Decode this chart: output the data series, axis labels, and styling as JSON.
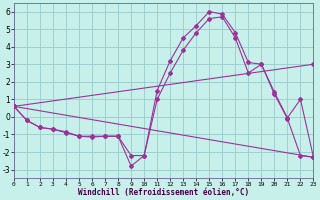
{
  "bg_color": "#c8f0ea",
  "grid_color": "#99cccc",
  "line_color": "#993399",
  "xlim": [
    0,
    23
  ],
  "ylim": [
    -3.5,
    6.5
  ],
  "xticks": [
    0,
    1,
    2,
    3,
    4,
    5,
    6,
    7,
    8,
    9,
    10,
    11,
    12,
    13,
    14,
    15,
    16,
    17,
    18,
    19,
    20,
    21,
    22,
    23
  ],
  "yticks": [
    -3,
    -2,
    -1,
    0,
    1,
    2,
    3,
    4,
    5,
    6
  ],
  "xlabel": "Windchill (Refroidissement éolien,°C)",
  "line1_x": [
    0,
    1,
    2,
    3,
    4,
    5,
    6,
    7,
    8,
    9,
    10,
    11,
    12,
    13,
    14,
    15,
    16,
    17,
    18,
    19,
    20,
    21,
    22,
    23
  ],
  "line1_y": [
    0.6,
    -0.2,
    -0.6,
    -0.7,
    -0.9,
    -1.1,
    -1.1,
    -1.1,
    -1.1,
    -2.8,
    -2.2,
    1.5,
    3.2,
    4.5,
    5.2,
    6.0,
    5.85,
    4.8,
    3.1,
    3.0,
    1.4,
    -0.05,
    1.0,
    -2.3
  ],
  "line2_x": [
    0,
    1,
    2,
    3,
    4,
    5,
    6,
    7,
    8,
    9,
    10,
    11,
    12,
    13,
    14,
    15,
    16,
    17,
    18,
    19,
    20,
    21,
    22,
    23
  ],
  "line2_y": [
    0.6,
    -0.2,
    -0.6,
    -0.7,
    -0.85,
    -1.1,
    -1.15,
    -1.1,
    -1.1,
    -2.2,
    -2.2,
    1.0,
    2.5,
    3.8,
    4.8,
    5.6,
    5.7,
    4.5,
    2.5,
    3.0,
    1.3,
    -0.1,
    -2.2,
    -2.3
  ],
  "line3_x": [
    0,
    23
  ],
  "line3_y": [
    0.6,
    3.0
  ],
  "line4_x": [
    0,
    23
  ],
  "line4_y": [
    0.6,
    -2.3
  ]
}
